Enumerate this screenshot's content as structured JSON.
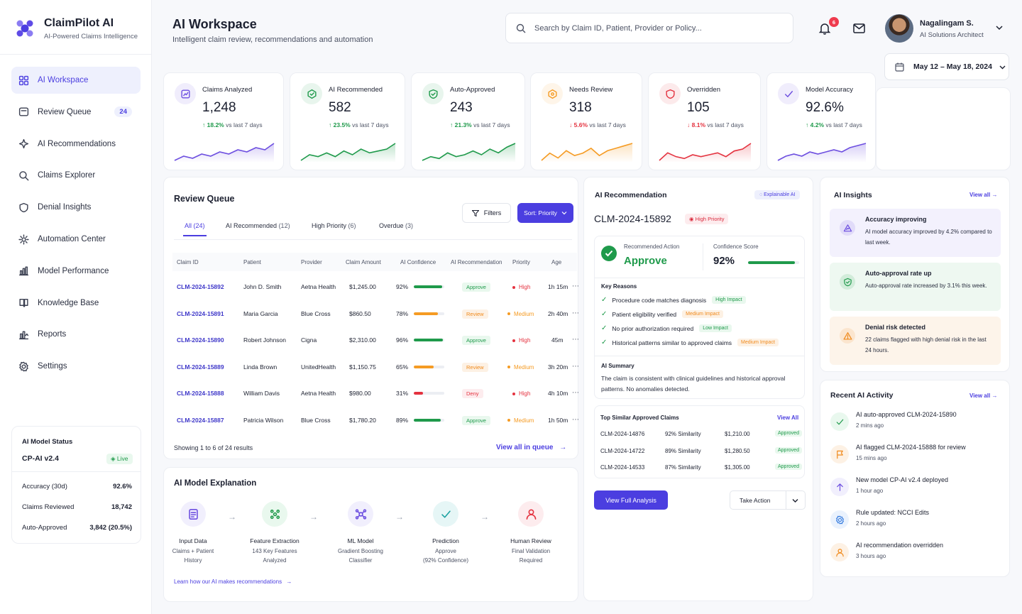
{
  "brand": {
    "name": "ClaimPilot AI",
    "tagline": "AI-Powered Claims Intelligence"
  },
  "nav": [
    {
      "label": "AI Workspace",
      "icon": "grid-icon",
      "active": true
    },
    {
      "label": "Review Queue",
      "icon": "queue-icon",
      "badge": "24"
    },
    {
      "label": "AI Recommendations",
      "icon": "sparkle-icon"
    },
    {
      "label": "Claims Explorer",
      "icon": "search-icon"
    },
    {
      "label": "Denial Insights",
      "icon": "shield-icon"
    },
    {
      "label": "Automation Center",
      "icon": "automation-icon"
    },
    {
      "label": "Model Performance",
      "icon": "bar-chart-icon"
    },
    {
      "label": "Knowledge Base",
      "icon": "book-icon"
    },
    {
      "label": "Reports",
      "icon": "report-icon"
    },
    {
      "label": "Settings",
      "icon": "gear-icon"
    }
  ],
  "model_status": {
    "title": "AI Model Status",
    "version": "CP-AI v2.4",
    "live": "Live",
    "rows": [
      {
        "label": "Accuracy (30d)",
        "value": "92.6%"
      },
      {
        "label": "Claims Reviewed",
        "value": "18,742"
      },
      {
        "label": "Auto-Approved",
        "value": "3,842 (20.5%)"
      }
    ]
  },
  "header": {
    "title": "AI Workspace",
    "subtitle": "Intelligent claim review, recommendations and automation",
    "search_placeholder": "Search by Claim ID, Patient, Provider or Policy...",
    "notifications": "6",
    "user_name": "Nagalingam S.",
    "user_role": "AI Solutions Architect",
    "date_range": "May 12 – May 18, 2024"
  },
  "kpis": [
    {
      "label": "Claims Analyzed",
      "value": "1,248",
      "delta": "18.2%",
      "dir": "up",
      "suffix": "vs last 7 days",
      "color": "#6d4fe0",
      "icon": "analyze-icon",
      "trend": [
        4,
        6,
        5,
        7,
        6,
        8,
        7,
        9,
        8,
        10,
        9,
        12
      ]
    },
    {
      "label": "AI Recommended",
      "value": "582",
      "delta": "23.5%",
      "dir": "up",
      "suffix": "vs last 7 days",
      "color": "#1f9a4b",
      "icon": "recommend-icon",
      "trend": [
        3,
        6,
        5,
        7,
        5,
        8,
        6,
        9,
        7,
        8,
        9,
        12
      ]
    },
    {
      "label": "Auto-Approved",
      "value": "243",
      "delta": "21.3%",
      "dir": "up",
      "suffix": "vs last 7 days",
      "color": "#1f9a4b",
      "icon": "shield-check-icon",
      "trend": [
        3,
        5,
        4,
        7,
        5,
        6,
        8,
        6,
        9,
        7,
        10,
        12
      ]
    },
    {
      "label": "Needs Review",
      "value": "318",
      "delta": "5.6%",
      "dir": "down",
      "suffix": "vs last 7 days",
      "color": "#f59b23",
      "icon": "review-icon",
      "trend": [
        4,
        7,
        5,
        8,
        6,
        7,
        9,
        6,
        8,
        9,
        10,
        11
      ]
    },
    {
      "label": "Overridden",
      "value": "105",
      "delta": "8.1%",
      "dir": "down",
      "suffix": "vs last 7 days",
      "color": "#e4323f",
      "icon": "override-icon",
      "trend": [
        3,
        7,
        5,
        4,
        6,
        5,
        6,
        7,
        5,
        8,
        9,
        12
      ]
    },
    {
      "label": "Model Accuracy",
      "value": "92.6%",
      "delta": "4.2%",
      "dir": "up",
      "suffix": "vs last 7 days",
      "color": "#6d4fe0",
      "icon": "check-icon",
      "trend": [
        4,
        6,
        7,
        6,
        8,
        7,
        8,
        9,
        8,
        10,
        11,
        12
      ]
    }
  ],
  "review_queue": {
    "title": "Review Queue",
    "filters": "Filters",
    "sort": "Sort: Priority",
    "tabs": [
      {
        "label": "All",
        "count": "(24)",
        "active": true
      },
      {
        "label": "AI Recommended",
        "count": "(12)"
      },
      {
        "label": "High Priority",
        "count": "(6)"
      },
      {
        "label": "Overdue",
        "count": "(3)"
      }
    ],
    "columns": [
      "Claim ID",
      "Patient",
      "Provider",
      "Claim Amount",
      "AI Confidence",
      "AI Recommendation",
      "Priority",
      "Age"
    ],
    "rows": [
      {
        "id": "CLM-2024-15892",
        "patient": "John D. Smith",
        "provider": "Aetna Health",
        "amount": "$1,245.00",
        "conf": "92%",
        "conf_val": 0.92,
        "rec": "Approve",
        "priority": "High",
        "age": "1h 15m"
      },
      {
        "id": "CLM-2024-15891",
        "patient": "Maria Garcia",
        "provider": "Blue Cross",
        "amount": "$860.50",
        "conf": "78%",
        "conf_val": 0.78,
        "rec": "Review",
        "priority": "Medium",
        "age": "2h 40m"
      },
      {
        "id": "CLM-2024-15890",
        "patient": "Robert Johnson",
        "provider": "Cigna",
        "amount": "$2,310.00",
        "conf": "96%",
        "conf_val": 0.96,
        "rec": "Approve",
        "priority": "High",
        "age": "45m"
      },
      {
        "id": "CLM-2024-15889",
        "patient": "Linda Brown",
        "provider": "UnitedHealth",
        "amount": "$1,150.75",
        "conf": "65%",
        "conf_val": 0.65,
        "rec": "Review",
        "priority": "Medium",
        "age": "3h 20m"
      },
      {
        "id": "CLM-2024-15888",
        "patient": "William Davis",
        "provider": "Aetna Health",
        "amount": "$980.00",
        "conf": "31%",
        "conf_val": 0.31,
        "rec": "Deny",
        "priority": "High",
        "age": "4h 10m"
      },
      {
        "id": "CLM-2024-15887",
        "patient": "Patricia Wilson",
        "provider": "Blue Cross",
        "amount": "$1,780.20",
        "conf": "89%",
        "conf_val": 0.89,
        "rec": "Approve",
        "priority": "Medium",
        "age": "1h 50m"
      }
    ],
    "showing": "Showing 1 to 6 of 24 results",
    "view_all": "View all in queue"
  },
  "explanation": {
    "title": "AI Model Explanation",
    "steps": [
      {
        "title": "Input Data",
        "desc1": "Claims + Patient",
        "desc2": "History",
        "icon": "document-icon",
        "color": "#6d4fe0",
        "bg": "#f1effd"
      },
      {
        "title": "Feature Extraction",
        "desc1": "143 Key Features",
        "desc2": "Analyzed",
        "icon": "feature-icon",
        "color": "#1f9a4b",
        "bg": "#e9f8ee"
      },
      {
        "title": "ML Model",
        "desc1": "Gradient Boosting",
        "desc2": "Classifier",
        "icon": "model-icon",
        "color": "#6d4fe0",
        "bg": "#f1effd"
      },
      {
        "title": "Prediction",
        "desc1": "Approve",
        "desc2": "(92% Confidence)",
        "icon": "prediction-icon",
        "color": "#1aa1a0",
        "bg": "#e6f6f6"
      },
      {
        "title": "Human Review",
        "desc1": "Final Validation",
        "desc2": "Required",
        "icon": "person-icon",
        "color": "#e4323f",
        "bg": "#fdecee"
      }
    ],
    "learn": "Learn how our AI makes recommendations"
  },
  "recommendation": {
    "title": "AI Recommendation",
    "explainable": "Explainable AI",
    "claim_id": "CLM-2024-15892",
    "priority": "High Priority",
    "action_label": "Recommended Action",
    "action": "Approve",
    "conf_label": "Confidence Score",
    "conf": "92%",
    "conf_val": 0.92,
    "reasons_title": "Key Reasons",
    "reasons": [
      {
        "text": "Procedure code matches diagnosis",
        "impact": "High Impact",
        "level": "high"
      },
      {
        "text": "Patient eligibility verified",
        "impact": "Medium Impact",
        "level": "medium"
      },
      {
        "text": "No prior authorization required",
        "impact": "Low Impact",
        "level": "low"
      },
      {
        "text": "Historical patterns similar to approved claims",
        "impact": "Medium Impact",
        "level": "medium"
      }
    ],
    "summary_title": "AI Summary",
    "summary": "The claim is consistent with clinical guidelines and historical approval patterns. No anomalies detected.",
    "similar_title": "Top Similar Approved Claims",
    "similar_view": "View All",
    "similar": [
      {
        "id": "CLM-2024-14876",
        "sim": "92% Similarity",
        "amount": "$1,210.00",
        "status": "Approved"
      },
      {
        "id": "CLM-2024-14722",
        "sim": "89% Similarity",
        "amount": "$1,280.50",
        "status": "Approved"
      },
      {
        "id": "CLM-2024-14533",
        "sim": "87% Similarity",
        "amount": "$1,305.00",
        "status": "Approved"
      }
    ],
    "view_full": "View Full Analysis",
    "take_action": "Take Action"
  },
  "insights": {
    "title": "AI Insights",
    "view_all": "View all",
    "items": [
      {
        "title": "Accuracy improving",
        "desc": "AI model accuracy improved by 4.2% compared to last week.",
        "icon": "trend-icon",
        "color": "#6d4fe0",
        "bg": "#f3f1fd"
      },
      {
        "title": "Auto-approval rate up",
        "desc": "Auto-approval rate increased by 3.1% this week.",
        "icon": "shield-check-icon",
        "color": "#1f9a4b",
        "bg": "#eef8f1"
      },
      {
        "title": "Denial risk detected",
        "desc": "22 claims flagged with high denial risk in the last 24 hours.",
        "icon": "warning-icon",
        "color": "#f08a1c",
        "bg": "#fdf4ea"
      }
    ]
  },
  "activity": {
    "title": "Recent AI Activity",
    "view_all": "View all",
    "items": [
      {
        "text": "AI auto-approved CLM-2024-15890",
        "time": "2 mins ago",
        "icon": "check-icon",
        "color": "#1f9a4b",
        "bg": "#e9f8ee"
      },
      {
        "text": "AI flagged CLM-2024-15888 for review",
        "time": "15 mins ago",
        "icon": "flag-icon",
        "color": "#f08a1c",
        "bg": "#fdf1e4"
      },
      {
        "text": "New model CP-AI v2.4 deployed",
        "time": "1 hour ago",
        "icon": "upload-icon",
        "color": "#6d4fe0",
        "bg": "#f1effd"
      },
      {
        "text": "Rule updated: NCCI Edits",
        "time": "2 hours ago",
        "icon": "gear-icon",
        "color": "#3a7fe0",
        "bg": "#eaf2fd"
      },
      {
        "text": "AI recommendation overridden",
        "time": "3 hours ago",
        "icon": "person-icon",
        "color": "#f08a1c",
        "bg": "#fdf1e4"
      }
    ]
  }
}
